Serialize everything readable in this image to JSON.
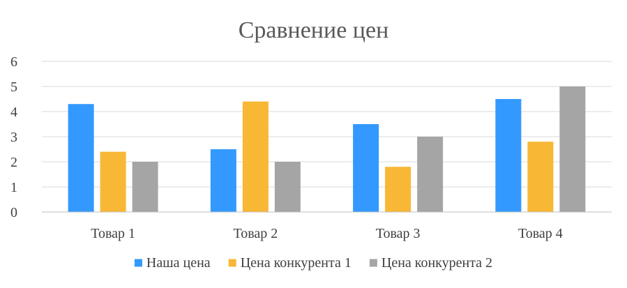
{
  "chart_data": {
    "type": "bar",
    "title": "Сравнение цен",
    "xlabel": "",
    "ylabel": "",
    "categories": [
      "Товар 1",
      "Товар 2",
      "Товар 3",
      "Товар 4"
    ],
    "series": [
      {
        "name": "Наша цена",
        "color": "#3399ff",
        "values": [
          4.3,
          2.5,
          3.5,
          4.5
        ]
      },
      {
        "name": "Цена конкурента 1",
        "color": "#f8b735",
        "values": [
          2.4,
          4.4,
          1.8,
          2.8
        ]
      },
      {
        "name": "Цена конкурента 2",
        "color": "#a5a5a5",
        "values": [
          2.0,
          2.0,
          3.0,
          5.0
        ]
      }
    ],
    "ylim": [
      0,
      6
    ],
    "yticks": [
      "0",
      "1",
      "2",
      "3",
      "4",
      "5",
      "6"
    ],
    "grid": true,
    "legend": "bottom"
  }
}
